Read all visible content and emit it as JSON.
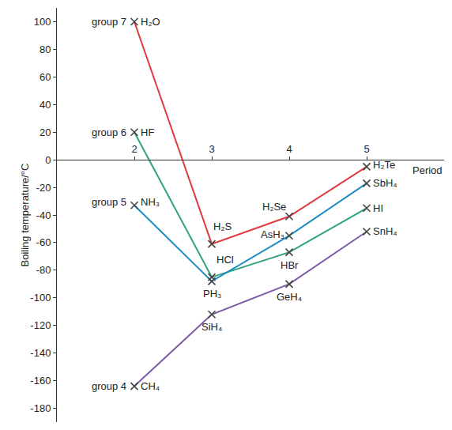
{
  "chart_data": {
    "type": "line",
    "xlabel": "Period",
    "ylabel": "Boiling temperature/°C",
    "x": [
      2,
      3,
      4,
      5
    ],
    "xlim": [
      1,
      6
    ],
    "xticks": [
      2,
      3,
      4,
      5
    ],
    "ylim": [
      -190,
      110
    ],
    "yticks": [
      -180,
      -160,
      -140,
      -120,
      -100,
      -80,
      -60,
      -40,
      -20,
      0,
      20,
      40,
      60,
      80,
      100
    ],
    "grid": false,
    "marker": "x",
    "series": [
      {
        "name": "group 7",
        "color": "#e03a3e",
        "values": [
          100,
          -61,
          -41,
          -5
        ],
        "labels": [
          "H₂O",
          "H₂S",
          "H₂Se",
          "H₂Te"
        ]
      },
      {
        "name": "group 6",
        "color": "#2fa37a",
        "values": [
          20,
          -85,
          -67,
          -35
        ],
        "labels": [
          "HF",
          "HCl",
          "HBr",
          "HI"
        ]
      },
      {
        "name": "group 5",
        "color": "#1c8dc4",
        "values": [
          -33,
          -88,
          -55,
          -17
        ],
        "labels": [
          "NH₃",
          "PH₃",
          "AsH₃",
          "SbH₄"
        ]
      },
      {
        "name": "group 4",
        "color": "#7d5aa8",
        "values": [
          -164,
          -112,
          -90,
          -52
        ],
        "labels": [
          "CH₄",
          "SiH₄",
          "GeH₄",
          "SnH₄"
        ]
      }
    ]
  }
}
